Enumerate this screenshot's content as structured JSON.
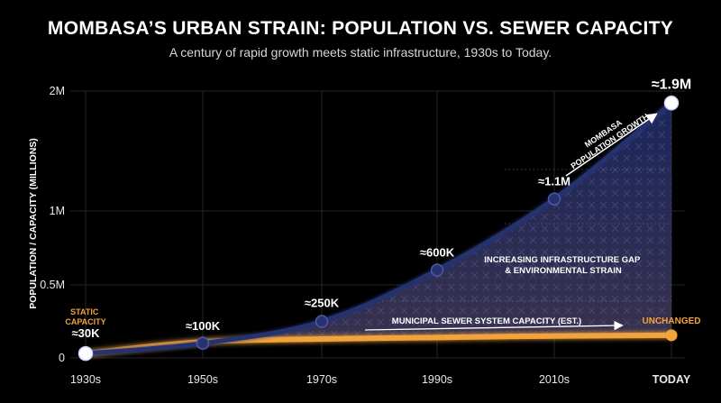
{
  "title": "MOMBASA’S URBAN STRAIN: POPULATION VS. SEWER CAPACITY",
  "subtitle": "A century of rapid growth meets static infrastructure, 1930s to Today.",
  "colors": {
    "background": "#000000",
    "population": "#26336e",
    "sewer": "#f2a33a",
    "gap_fill": "#2b2c55",
    "grid": "#2a2a2a"
  },
  "chart_data": {
    "type": "line",
    "ylabel": "POPULATION / CAPACITY (MILLIONS)",
    "categories": [
      "1930s",
      "1950s",
      "1970s",
      "1990s",
      "2010s",
      "TODAY"
    ],
    "yticks": [
      {
        "value": 0,
        "label": "0"
      },
      {
        "value": 0.5,
        "label": "0.5M"
      },
      {
        "value": 1,
        "label": "1M"
      },
      {
        "value": 2,
        "label": "2M"
      }
    ],
    "ylim": [
      0,
      2
    ],
    "grid": true,
    "series": [
      {
        "key": "population",
        "values": [
          0.03,
          0.1,
          0.25,
          0.6,
          1.1,
          1.9
        ],
        "labels": [
          "≈30K",
          "≈100K",
          "≈250K",
          "≈600K",
          "≈1.1M",
          "≈1.9M"
        ]
      },
      {
        "key": "sewer",
        "values": [
          0.03,
          0.11,
          0.13,
          0.14,
          0.15,
          0.155
        ]
      }
    ],
    "annotations": {
      "static_capacity": "STATIC\nCAPACITY",
      "unchanged": "UNCHANGED",
      "sewer_label": "MUNICIPAL SEWER SYSTEM CAPACITY (EST.)",
      "population_growth": "MOMBASA\nPOPULATION GROWTH",
      "gap": "INCREASING INFRASTRUCTURE GAP\n& ENVIRONMENTAL STRAIN"
    }
  }
}
